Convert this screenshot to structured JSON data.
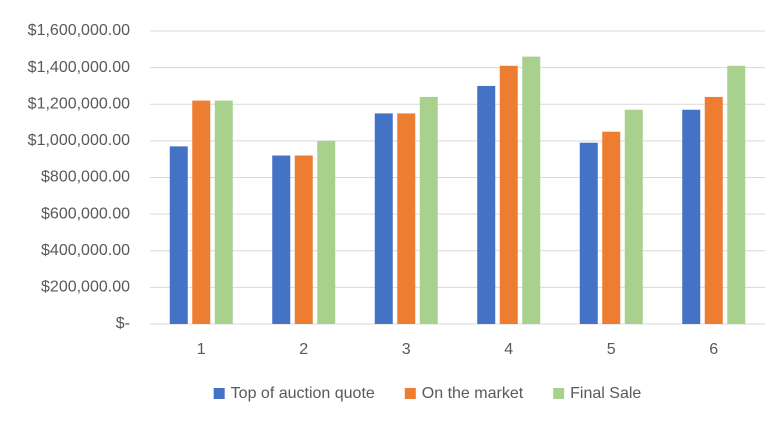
{
  "chart_data": {
    "type": "bar",
    "categories": [
      "1",
      "2",
      "3",
      "4",
      "5",
      "6"
    ],
    "series": [
      {
        "name": "Top of auction quote",
        "color": "#4472c4",
        "values": [
          970000,
          920000,
          1150000,
          1300000,
          990000,
          1170000
        ]
      },
      {
        "name": "On the market",
        "color": "#ed7d31",
        "values": [
          1220000,
          920000,
          1150000,
          1410000,
          1050000,
          1240000
        ]
      },
      {
        "name": "Final Sale",
        "color": "#a9d18e",
        "values": [
          1220000,
          1000000,
          1240000,
          1460000,
          1170000,
          1410000
        ]
      }
    ],
    "ylim": [
      0,
      1600000
    ],
    "yticks": [
      {
        "value": 0,
        "label": "$-"
      },
      {
        "value": 200000,
        "label": "$200,000.00"
      },
      {
        "value": 400000,
        "label": "$400,000.00"
      },
      {
        "value": 600000,
        "label": "$600,000.00"
      },
      {
        "value": 800000,
        "label": "$800,000.00"
      },
      {
        "value": 1000000,
        "label": "$1,000,000.00"
      },
      {
        "value": 1200000,
        "label": "$1,200,000.00"
      },
      {
        "value": 1400000,
        "label": "$1,400,000.00"
      },
      {
        "value": 1600000,
        "label": "$1,600,000.00"
      }
    ],
    "grid": true,
    "legend": "bottom"
  }
}
